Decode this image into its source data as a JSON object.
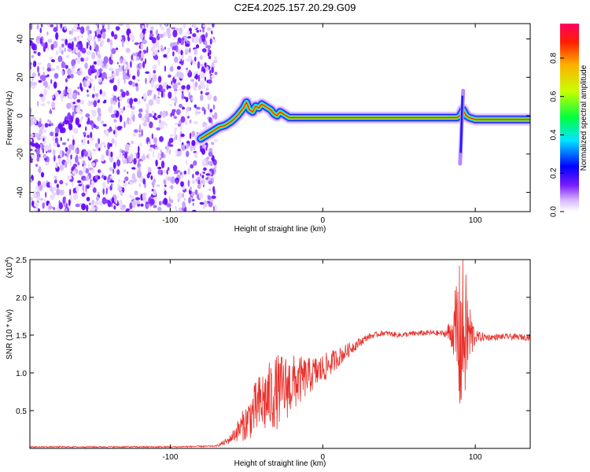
{
  "title": "C2E4.2025.157.20.29.G09",
  "chart_data": [
    {
      "type": "heatmap",
      "xlabel": "Height of straight line (km)",
      "ylabel": "Frequency (Hz)",
      "xlim": [
        -192,
        136
      ],
      "ylim": [
        -50,
        48
      ],
      "xticks": [
        -100,
        0,
        100
      ],
      "xtick_labels": [
        "-100",
        "0",
        "100"
      ],
      "yticks": [
        -40,
        -20,
        0,
        20,
        40
      ],
      "ytick_labels": [
        "-40",
        "-20",
        "0",
        "20",
        "40"
      ],
      "grid": false,
      "noise_region": {
        "x_start": -192,
        "x_end": -70
      },
      "trace": {
        "x": [
          -80,
          -76,
          -72,
          -68,
          -64,
          -60,
          -56,
          -52,
          -50,
          -48,
          -46,
          -44,
          -42,
          -40,
          -38,
          -36,
          -34,
          -32,
          -30,
          -28,
          -26,
          -24,
          -22,
          -20,
          -15,
          -10,
          -5,
          0,
          10,
          20,
          30,
          40,
          50,
          60,
          70,
          80,
          85,
          88,
          90,
          92,
          94,
          96,
          100,
          110,
          120,
          136
        ],
        "y": [
          -12,
          -10,
          -8,
          -6,
          -5,
          -3,
          0,
          4,
          7,
          3,
          2,
          5,
          4,
          6,
          5,
          4,
          3,
          1,
          0,
          2,
          1,
          0,
          -1,
          -1,
          -1,
          -1,
          -1,
          -1,
          -1,
          -1,
          -1,
          -1,
          -1,
          -1,
          -1,
          -1,
          -1,
          -1,
          0,
          3,
          0,
          -1,
          -2,
          -2,
          -2,
          -2
        ]
      },
      "spike": {
        "x": 90,
        "y_min": -25,
        "y_max": 13
      },
      "colorbar": {
        "label": "Normalized spectral amplitude",
        "range": [
          0.0,
          0.98
        ],
        "ticks": [
          0.0,
          0.2,
          0.4,
          0.6,
          0.8
        ],
        "tick_labels": [
          "0.0",
          "0.2",
          "0.4",
          "0.6",
          "0.8"
        ]
      }
    },
    {
      "type": "line",
      "xlabel": "Height of straight line (km)",
      "ylabel": "SNR (10 * v/v)",
      "y_multiplier_label": "(x10",
      "y_multiplier_exp": "4",
      "y_multiplier_close": ")",
      "xlim": [
        -192,
        136
      ],
      "ylim": [
        0,
        25000
      ],
      "xticks": [
        -100,
        0,
        100
      ],
      "xtick_labels": [
        "-100",
        "0",
        "100"
      ],
      "yticks": [
        5000,
        10000,
        15000,
        20000,
        25000
      ],
      "ytick_labels": [
        "0.5",
        "1.0",
        "1.5",
        "2.0",
        "2.5"
      ],
      "grid": false,
      "color": "#e8302a",
      "envelope": {
        "x": [
          -192,
          -100,
          -70,
          -62,
          -55,
          -50,
          -45,
          -40,
          -30,
          -20,
          -10,
          0,
          10,
          20,
          30,
          40,
          50,
          60,
          70,
          80,
          85,
          88,
          90,
          92,
          94,
          96,
          98,
          100,
          110,
          120,
          136
        ],
        "y": [
          200,
          200,
          300,
          1000,
          2500,
          3500,
          5000,
          6000,
          7500,
          8500,
          9500,
          10500,
          12000,
          13500,
          14800,
          15300,
          15000,
          15200,
          15300,
          15200,
          15400,
          15000,
          14000,
          15000,
          15200,
          15000,
          14800,
          14800,
          14700,
          14800,
          14700
        ]
      },
      "noise_amplitude": {
        "x": [
          -192,
          -70,
          -60,
          -50,
          -40,
          -30,
          -20,
          -10,
          0,
          10,
          20,
          30,
          40,
          80,
          86,
          88,
          92,
          96,
          100,
          110,
          136
        ],
        "y": [
          80,
          100,
          600,
          2500,
          4500,
          5000,
          4000,
          2500,
          2000,
          1300,
          800,
          400,
          350,
          400,
          3000,
          10000,
          11000,
          5000,
          800,
          400,
          400
        ]
      }
    }
  ]
}
